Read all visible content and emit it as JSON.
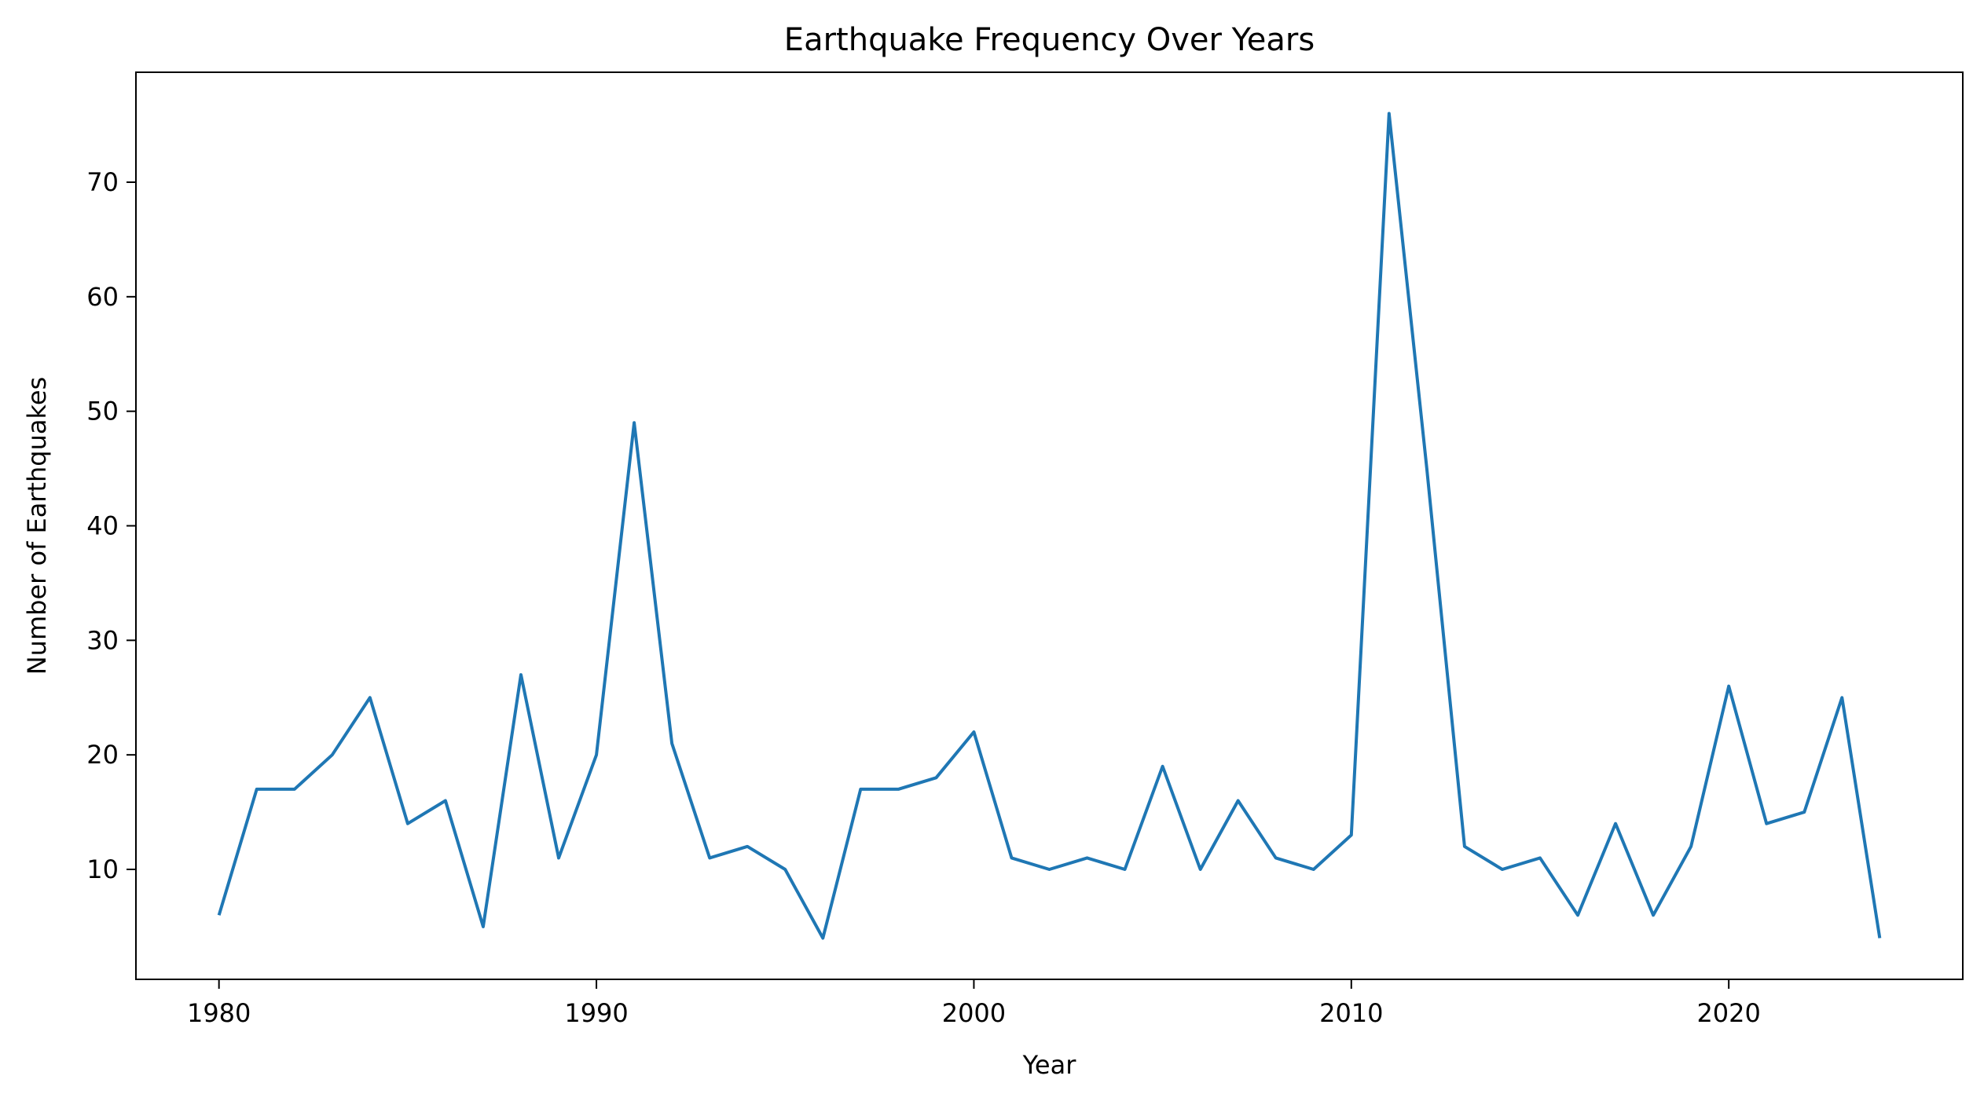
{
  "chart_data": {
    "type": "line",
    "title": "Earthquake Frequency Over Years",
    "xlabel": "Year",
    "ylabel": "Number of Earthquakes",
    "xlim": [
      1977.8,
      2026.2
    ],
    "ylim": [
      0.4,
      79.6
    ],
    "x_ticks": [
      1980,
      1990,
      2000,
      2010,
      2020
    ],
    "y_ticks": [
      10,
      20,
      30,
      40,
      50,
      60,
      70
    ],
    "grid": false,
    "legend": "none",
    "series": [
      {
        "color": "#1f77b4",
        "x": [
          1980,
          1981,
          1982,
          1983,
          1984,
          1985,
          1986,
          1987,
          1988,
          1989,
          1990,
          1991,
          1992,
          1993,
          1994,
          1995,
          1996,
          1997,
          1998,
          1999,
          2000,
          2001,
          2002,
          2003,
          2004,
          2005,
          2006,
          2007,
          2008,
          2009,
          2010,
          2011,
          2012,
          2013,
          2014,
          2015,
          2016,
          2017,
          2018,
          2019,
          2020,
          2021,
          2022,
          2023,
          2024
        ],
        "values": [
          6,
          17,
          17,
          20,
          25,
          14,
          16,
          5,
          27,
          11,
          20,
          49,
          21,
          11,
          12,
          10,
          4,
          17,
          17,
          18,
          22,
          11,
          10,
          11,
          10,
          19,
          10,
          16,
          11,
          10,
          13,
          76,
          45,
          12,
          10,
          11,
          6,
          14,
          6,
          12,
          26,
          14,
          15,
          25,
          4
        ]
      }
    ]
  }
}
